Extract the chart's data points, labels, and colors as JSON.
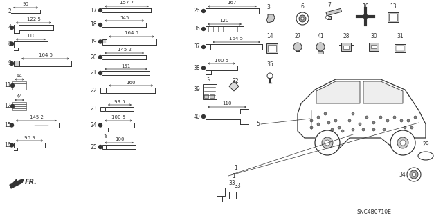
{
  "bg_color": "#ffffff",
  "line_color": "#333333",
  "code": "SNC4B0710E",
  "figsize": [
    6.4,
    3.19
  ],
  "dpi": 100
}
